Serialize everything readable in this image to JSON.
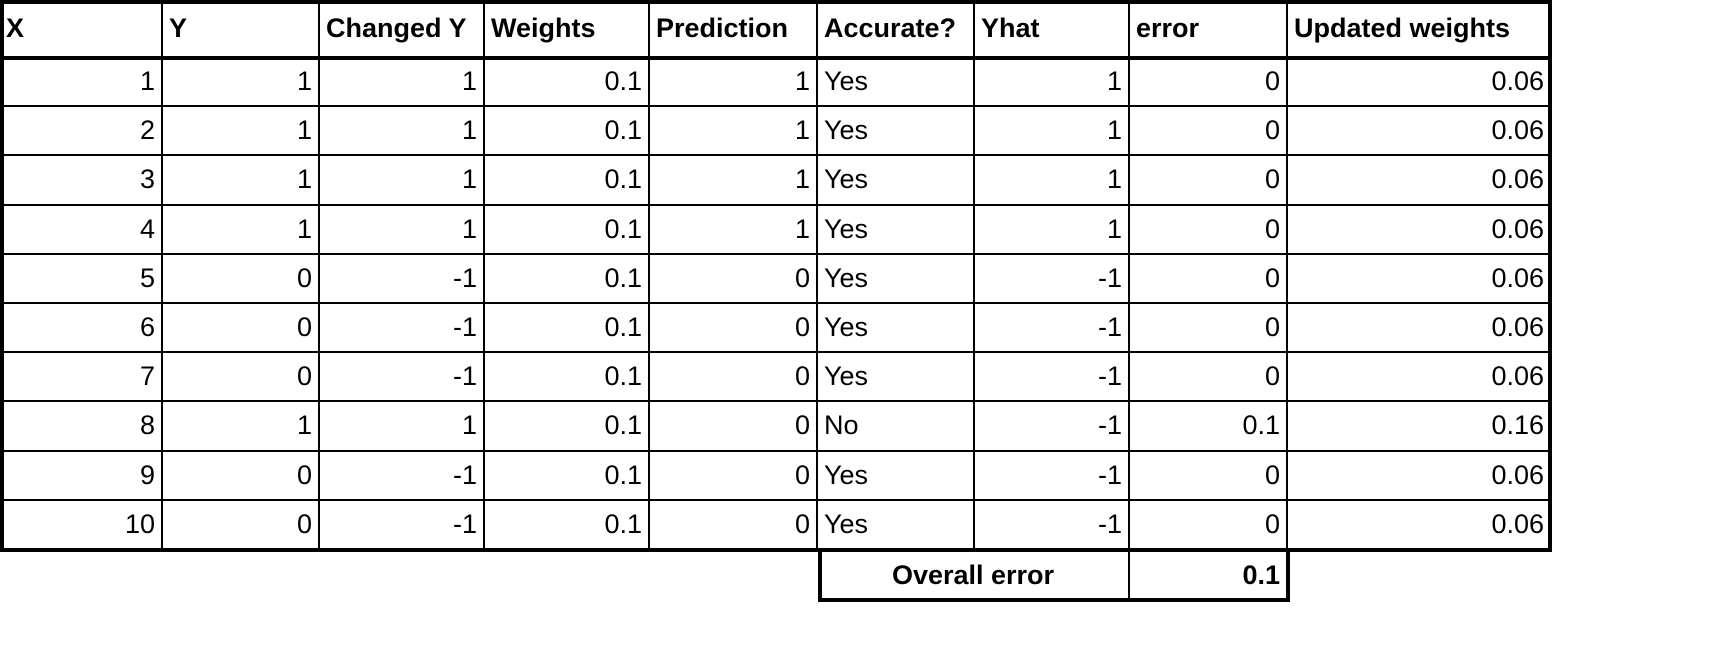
{
  "table": {
    "headers": [
      "X",
      "Y",
      "Changed Y",
      "Weights",
      "Prediction",
      "Accurate?",
      "Yhat",
      "error",
      "Updated weights"
    ],
    "rows": [
      [
        1,
        1,
        1,
        0.1,
        1,
        "Yes",
        1,
        0,
        0.06
      ],
      [
        2,
        1,
        1,
        0.1,
        1,
        "Yes",
        1,
        0,
        0.06
      ],
      [
        3,
        1,
        1,
        0.1,
        1,
        "Yes",
        1,
        0,
        0.06
      ],
      [
        4,
        1,
        1,
        0.1,
        1,
        "Yes",
        1,
        0,
        0.06
      ],
      [
        5,
        0,
        -1,
        0.1,
        0,
        "Yes",
        -1,
        0,
        0.06
      ],
      [
        6,
        0,
        -1,
        0.1,
        0,
        "Yes",
        -1,
        0,
        0.06
      ],
      [
        7,
        0,
        -1,
        0.1,
        0,
        "Yes",
        -1,
        0,
        0.06
      ],
      [
        8,
        1,
        1,
        0.1,
        0,
        "No",
        -1,
        0.1,
        0.16
      ],
      [
        9,
        0,
        -1,
        0.1,
        0,
        "Yes",
        -1,
        0,
        0.06
      ],
      [
        10,
        0,
        -1,
        0.1,
        0,
        "Yes",
        -1,
        0,
        0.06
      ]
    ],
    "footer": {
      "label": "Overall error",
      "value": 0.1
    }
  }
}
